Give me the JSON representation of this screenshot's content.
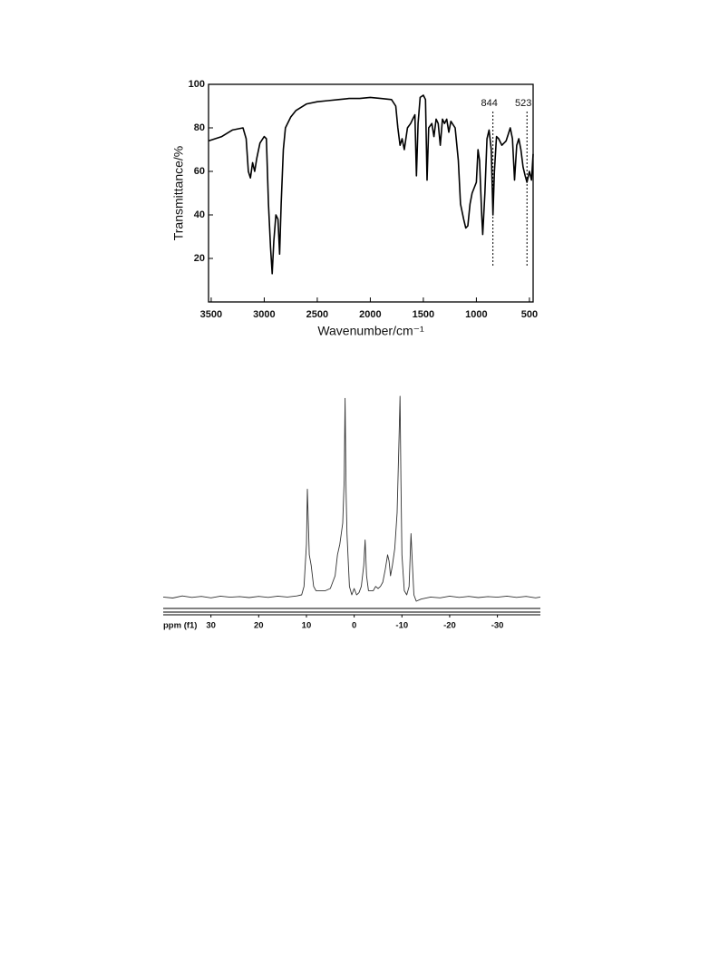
{
  "chart_data": [
    {
      "type": "line",
      "x_label": "Wavenumber/cm⁻¹",
      "y_label": "Transmittance/%",
      "x": [
        3525,
        3400,
        3300,
        3200,
        3170,
        3150,
        3130,
        3110,
        3090,
        3070,
        3040,
        3000,
        2980,
        2960,
        2940,
        2925,
        2910,
        2890,
        2870,
        2855,
        2840,
        2820,
        2800,
        2750,
        2700,
        2600,
        2500,
        2400,
        2300,
        2200,
        2100,
        2000,
        1900,
        1800,
        1760,
        1740,
        1720,
        1700,
        1680,
        1650,
        1620,
        1600,
        1580,
        1565,
        1550,
        1530,
        1500,
        1480,
        1465,
        1450,
        1420,
        1400,
        1380,
        1360,
        1340,
        1320,
        1300,
        1280,
        1260,
        1240,
        1200,
        1170,
        1150,
        1120,
        1100,
        1080,
        1060,
        1040,
        1000,
        985,
        970,
        950,
        940,
        920,
        900,
        880,
        860,
        844,
        830,
        810,
        790,
        760,
        720,
        700,
        680,
        660,
        640,
        620,
        600,
        580,
        560,
        540,
        523,
        500,
        480,
        465
      ],
      "values": [
        74,
        76,
        79,
        80,
        75,
        60,
        57,
        64,
        60,
        66,
        73,
        76,
        75,
        45,
        25,
        13,
        28,
        40,
        38,
        22,
        45,
        70,
        80,
        85,
        88,
        91,
        92,
        92.5,
        93,
        93.5,
        93.5,
        94,
        93.5,
        93,
        90,
        80,
        72,
        75,
        70,
        80,
        82,
        84,
        86,
        58,
        82,
        94,
        95,
        93,
        56,
        80,
        82,
        76,
        84,
        82,
        72,
        84,
        82,
        84,
        78,
        83,
        80,
        65,
        45,
        38,
        34,
        35,
        45,
        50,
        55,
        70,
        65,
        40,
        31,
        50,
        75,
        79,
        70,
        40,
        60,
        76,
        75,
        72,
        74,
        77,
        80,
        75,
        56,
        72,
        75,
        70,
        62,
        58,
        55,
        60,
        56,
        68
      ],
      "color": "#000000",
      "xlim": [
        3525,
        465
      ],
      "xticks": [
        3500,
        3000,
        2500,
        2000,
        1500,
        1000,
        500
      ],
      "ylim": [
        0,
        100
      ],
      "yticks": [
        20,
        40,
        60,
        80,
        100
      ],
      "annotations": [
        844,
        523
      ]
    },
    {
      "type": "line",
      "x_label": "ppm (f1)",
      "x": [
        40,
        38,
        36,
        34,
        32,
        30,
        28,
        26,
        24,
        22,
        20,
        18,
        16,
        14,
        12,
        11,
        10.5,
        10,
        9.8,
        9.6,
        9.4,
        9.0,
        8.5,
        8,
        7,
        6,
        5,
        4,
        3.5,
        3,
        2.7,
        2.4,
        2.1,
        1.9,
        1.7,
        1.5,
        1.2,
        1,
        0.5,
        0,
        -0.5,
        -1,
        -1.5,
        -2,
        -2.3,
        -2.6,
        -3,
        -4,
        -4.5,
        -5,
        -5.5,
        -6,
        -6.5,
        -7,
        -7.3,
        -7.6,
        -8,
        -8.5,
        -9,
        -9.4,
        -9.6,
        -9.8,
        -10,
        -10.5,
        -11,
        -11.5,
        -11.9,
        -12.2,
        -12.5,
        -13,
        -14,
        -16,
        -18,
        -20,
        -22,
        -24,
        -26,
        -28,
        -30,
        -32,
        -34,
        -36,
        -38,
        -39
      ],
      "values": [
        5,
        4.5,
        5.5,
        4.8,
        5.3,
        4.6,
        5.4,
        4.9,
        5.2,
        4.7,
        5.3,
        4.8,
        5.4,
        5,
        5.5,
        6,
        10,
        30,
        56,
        40,
        25,
        20,
        10,
        8,
        8,
        8,
        9,
        15,
        25,
        30,
        35,
        40,
        60,
        99,
        55,
        35,
        20,
        10,
        6,
        9,
        6,
        7,
        10,
        20,
        32,
        15,
        8,
        8,
        10,
        9,
        10,
        12,
        18,
        25,
        22,
        15,
        20,
        28,
        45,
        80,
        100,
        60,
        25,
        8,
        6,
        10,
        35,
        20,
        6,
        3,
        4,
        5,
        4.6,
        5.4,
        4.8,
        5.3,
        4.7,
        5.2,
        4.9,
        5.4,
        4.8,
        5.3,
        4.6,
        5
      ],
      "color": "#333333",
      "xlim": [
        40,
        -39
      ],
      "xticks": [
        30,
        20,
        10,
        0,
        -10,
        -20,
        -30
      ],
      "ylim": [
        0,
        100
      ]
    }
  ]
}
